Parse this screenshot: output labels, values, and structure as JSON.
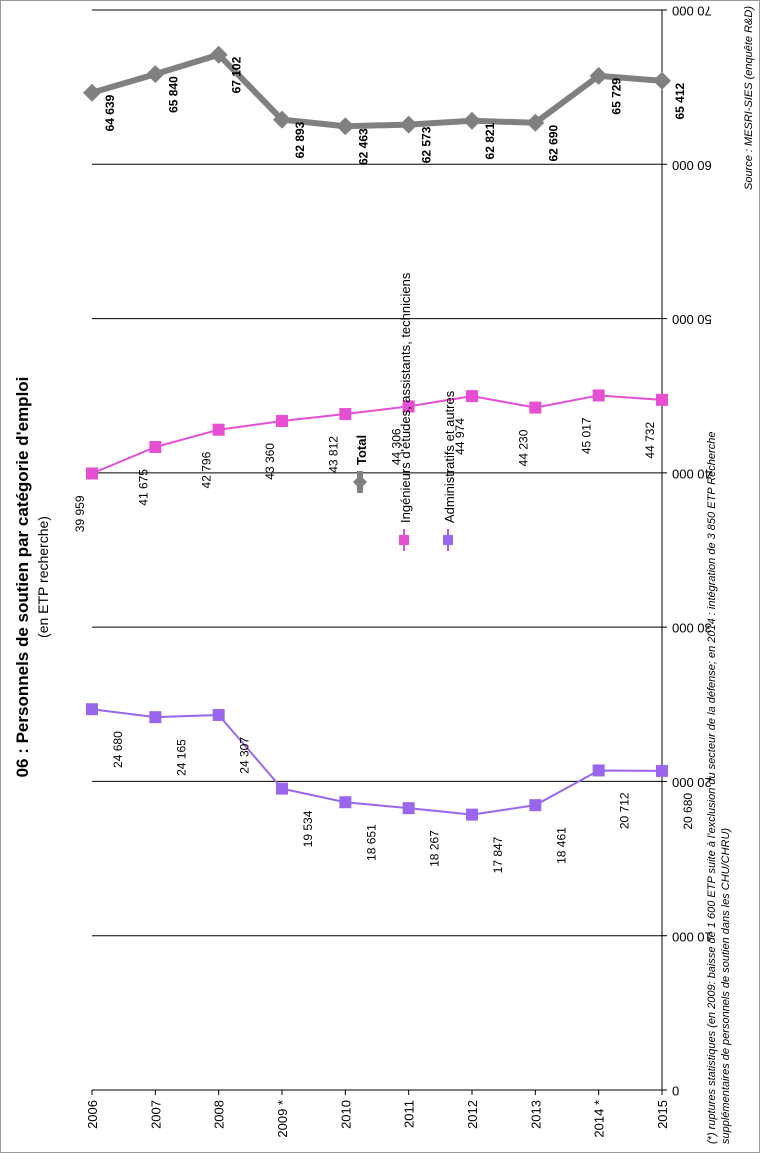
{
  "chart_data": {
    "type": "line",
    "title": "06 : Personnels de soutien par catégorie d'emploi",
    "subtitle": "(en ETP recherche)",
    "x": [
      "2006",
      "2007",
      "2008",
      "2009 *",
      "2010",
      "2011",
      "2012",
      "2013",
      "2014 *",
      "2015"
    ],
    "yticks": [
      "0",
      "10 000",
      "20 000",
      "30 000",
      "40 000",
      "50 000",
      "60 000",
      "70 000"
    ],
    "ylim": [
      0,
      70000
    ],
    "grid": true,
    "legend_position": "center",
    "series": [
      {
        "name": "Total",
        "color": "#808080",
        "marker": "diamond",
        "values": [
          64639,
          65840,
          67102,
          62893,
          62463,
          62573,
          62821,
          62690,
          65729,
          65412
        ],
        "labels": [
          "64 639",
          "65 840",
          "67 102",
          "62 893",
          "62 463",
          "62 573",
          "62 821",
          "62 690",
          "65 729",
          "65 412"
        ]
      },
      {
        "name": "Ingénieurs d'études, assistants, techniciens",
        "color": "#e64fd2",
        "marker": "square",
        "values": [
          39959,
          41675,
          42796,
          43360,
          43812,
          44306,
          44974,
          44230,
          45017,
          44732
        ],
        "labels": [
          "39 959",
          "41 675",
          "42 796",
          "43 360",
          "43 812",
          "44 306",
          "44 974",
          "44 230",
          "45 017",
          "44 732"
        ]
      },
      {
        "name": "Administratifs et autres",
        "color": "#9966ee",
        "marker": "square",
        "values": [
          24680,
          24165,
          24307,
          19534,
          18651,
          18267,
          17847,
          18461,
          20712,
          20680
        ],
        "labels": [
          "24 680",
          "24 165",
          "24 307",
          "19 534",
          "18 651",
          "18 267",
          "17 847",
          "18 461",
          "20 712",
          "20 680"
        ]
      }
    ],
    "footnote_line1": "(*) ruptures statistiques (en 2009: baisse de 1 600 ETP suite à l'exclusion du secteur de la défense; en 2014 : intégration de 3 850 ETP Recherche",
    "footnote_line2": "supplémentaires de personnels de soutien dans les CHU/CHRU)",
    "source": "Source : MESRI-SIES (enquête R&D)"
  }
}
